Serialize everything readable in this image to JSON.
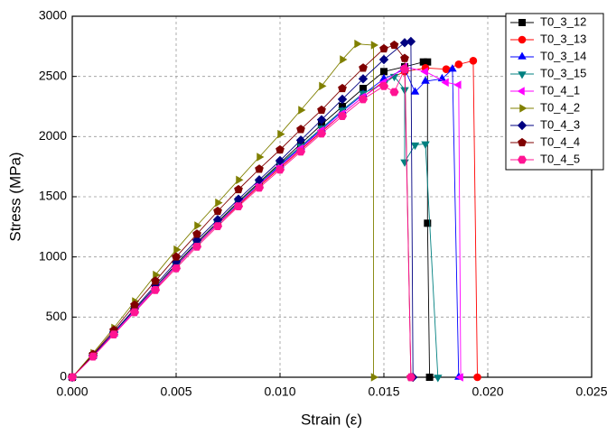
{
  "chart_data": {
    "type": "line",
    "xlabel": "Strain (ε)",
    "ylabel": "Stress (MPa)",
    "xlim": [
      0,
      0.025
    ],
    "xticks": [
      {
        "value": 0,
        "label": "0.000"
      },
      {
        "value": 0.005,
        "label": "0.005"
      },
      {
        "value": 0.01,
        "label": "0.010"
      },
      {
        "value": 0.015,
        "label": "0.015"
      },
      {
        "value": 0.02,
        "label": "0.020"
      },
      {
        "value": 0.025,
        "label": "0.025"
      }
    ],
    "ylim": [
      0,
      3000
    ],
    "yticks": [
      0,
      500,
      1000,
      1500,
      2000,
      2500,
      3000
    ],
    "grid": true,
    "legend": "upper right",
    "series": [
      {
        "name": "T0_3_12",
        "color": "#000000",
        "marker": "square",
        "x": [
          0,
          0.001,
          0.002,
          0.003,
          0.004,
          0.005,
          0.006,
          0.007,
          0.008,
          0.009,
          0.01,
          0.011,
          0.012,
          0.013,
          0.014,
          0.015,
          0.016,
          0.0169,
          0.0171,
          0.0171,
          0.0172
        ],
        "values": [
          0,
          180,
          370,
          560,
          750,
          940,
          1120,
          1290,
          1460,
          1620,
          1780,
          1940,
          2100,
          2250,
          2400,
          2540,
          2580,
          2620,
          2620,
          1280,
          0
        ]
      },
      {
        "name": "T0_3_13",
        "color": "#ff0000",
        "marker": "circle",
        "x": [
          0,
          0.001,
          0.002,
          0.003,
          0.004,
          0.005,
          0.006,
          0.007,
          0.008,
          0.009,
          0.01,
          0.011,
          0.012,
          0.013,
          0.014,
          0.015,
          0.016,
          0.017,
          0.018,
          0.0186,
          0.0193,
          0.0195
        ],
        "values": [
          0,
          175,
          360,
          550,
          735,
          920,
          1100,
          1270,
          1430,
          1590,
          1740,
          1890,
          2040,
          2190,
          2330,
          2460,
          2540,
          2570,
          2560,
          2600,
          2630,
          0
        ]
      },
      {
        "name": "T0_3_14",
        "color": "#0000ff",
        "marker": "triangle-up",
        "x": [
          0,
          0.001,
          0.002,
          0.003,
          0.004,
          0.005,
          0.006,
          0.007,
          0.008,
          0.009,
          0.01,
          0.011,
          0.012,
          0.013,
          0.014,
          0.015,
          0.016,
          0.0165,
          0.017,
          0.0178,
          0.0183,
          0.0186
        ],
        "values": [
          0,
          175,
          360,
          550,
          740,
          925,
          1105,
          1275,
          1440,
          1600,
          1760,
          1910,
          2060,
          2210,
          2350,
          2480,
          2560,
          2370,
          2460,
          2480,
          2560,
          0
        ]
      },
      {
        "name": "T0_3_15",
        "color": "#008080",
        "marker": "triangle-down",
        "x": [
          0,
          0.001,
          0.002,
          0.003,
          0.004,
          0.005,
          0.006,
          0.007,
          0.008,
          0.009,
          0.01,
          0.011,
          0.012,
          0.013,
          0.014,
          0.015,
          0.0155,
          0.016,
          0.016,
          0.0165,
          0.017,
          0.0176
        ],
        "values": [
          0,
          180,
          365,
          555,
          745,
          930,
          1110,
          1280,
          1450,
          1610,
          1770,
          1920,
          2070,
          2220,
          2360,
          2440,
          2500,
          2390,
          1790,
          1930,
          1940,
          0
        ]
      },
      {
        "name": "T0_4_1",
        "color": "#ff00ff",
        "marker": "triangle-left",
        "x": [
          0,
          0.001,
          0.002,
          0.003,
          0.004,
          0.005,
          0.006,
          0.007,
          0.008,
          0.009,
          0.01,
          0.011,
          0.012,
          0.013,
          0.014,
          0.015,
          0.016,
          0.017,
          0.018,
          0.0186,
          0.0187
        ],
        "values": [
          0,
          178,
          362,
          552,
          740,
          925,
          1105,
          1275,
          1440,
          1600,
          1750,
          1900,
          2050,
          2190,
          2330,
          2450,
          2580,
          2540,
          2450,
          2430,
          0
        ]
      },
      {
        "name": "T0_4_2",
        "color": "#808000",
        "marker": "triangle-right",
        "x": [
          0,
          0.001,
          0.002,
          0.003,
          0.004,
          0.005,
          0.006,
          0.007,
          0.008,
          0.009,
          0.01,
          0.011,
          0.012,
          0.013,
          0.0137,
          0.0145,
          0.0145
        ],
        "values": [
          0,
          200,
          410,
          630,
          850,
          1060,
          1260,
          1450,
          1640,
          1830,
          2020,
          2220,
          2420,
          2640,
          2770,
          2760,
          0
        ]
      },
      {
        "name": "T0_4_3",
        "color": "#000080",
        "marker": "diamond",
        "x": [
          0,
          0.001,
          0.002,
          0.003,
          0.004,
          0.005,
          0.006,
          0.007,
          0.008,
          0.009,
          0.01,
          0.011,
          0.012,
          0.013,
          0.014,
          0.015,
          0.016,
          0.0163,
          0.0164
        ],
        "values": [
          0,
          182,
          375,
          570,
          765,
          960,
          1140,
          1310,
          1480,
          1640,
          1800,
          1970,
          2140,
          2310,
          2480,
          2640,
          2780,
          2790,
          0
        ]
      },
      {
        "name": "T0_4_4",
        "color": "#800000",
        "marker": "pentagon",
        "x": [
          0,
          0.001,
          0.002,
          0.003,
          0.004,
          0.005,
          0.006,
          0.007,
          0.008,
          0.009,
          0.01,
          0.011,
          0.012,
          0.013,
          0.014,
          0.015,
          0.0155,
          0.016,
          0.0163
        ],
        "values": [
          0,
          190,
          390,
          600,
          800,
          1000,
          1190,
          1380,
          1560,
          1730,
          1890,
          2060,
          2220,
          2400,
          2570,
          2730,
          2760,
          2650,
          0
        ]
      },
      {
        "name": "T0_4_5",
        "color": "#ff1493",
        "marker": "hexagon",
        "x": [
          0,
          0.001,
          0.002,
          0.003,
          0.004,
          0.005,
          0.006,
          0.007,
          0.008,
          0.009,
          0.01,
          0.011,
          0.012,
          0.013,
          0.014,
          0.015,
          0.0155,
          0.016,
          0.0163
        ],
        "values": [
          0,
          172,
          355,
          540,
          725,
          905,
          1085,
          1255,
          1420,
          1575,
          1725,
          1875,
          2025,
          2170,
          2310,
          2420,
          2370,
          2560,
          0
        ]
      }
    ]
  }
}
